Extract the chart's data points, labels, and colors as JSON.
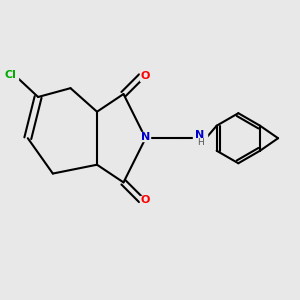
{
  "background_color": "#e8e8e8",
  "bond_color": "#000000",
  "bond_width": 1.5,
  "atom_colors": {
    "O": "#ff0000",
    "N": "#0000cc",
    "Cl": "#00aa00",
    "C": "#000000",
    "H": "#555555"
  },
  "figsize": [
    3.0,
    3.0
  ],
  "dpi": 100,
  "xlim": [
    0,
    10
  ],
  "ylim": [
    0,
    10
  ]
}
